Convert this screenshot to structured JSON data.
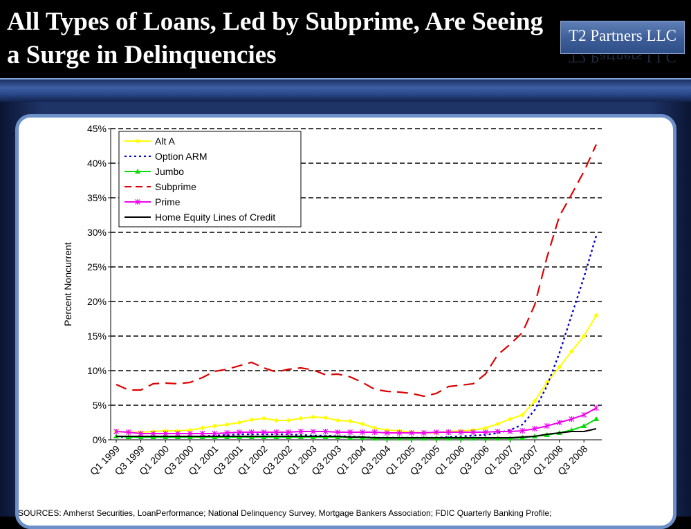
{
  "slide": {
    "title": "All Types of Loans, Led by Subprime, Are Seeing a Surge in Delinquencies",
    "logo_text": "T2 Partners LLC",
    "source": "SOURCES: Amherst Securities, LoanPerformance; National Delinquency Survey, Mortgage Bankers Association; FDIC Quarterly Banking Profile;"
  },
  "chart_data": {
    "type": "line",
    "ylabel": "Percent Noncurrent",
    "ylim": [
      0,
      45
    ],
    "yticks": [
      "0%",
      "5%",
      "10%",
      "15%",
      "20%",
      "25%",
      "30%",
      "35%",
      "40%",
      "45%"
    ],
    "x_tick_labels": [
      "Q1 1999",
      "Q3 1999",
      "Q1 2000",
      "Q3 2000",
      "Q1 2001",
      "Q3 2001",
      "Q1 2002",
      "Q3 2002",
      "Q1 2003",
      "Q3 2003",
      "Q1 2004",
      "Q3 2004",
      "Q1 2005",
      "Q3 2005",
      "Q1 2006",
      "Q3 2006",
      "Q1 2007",
      "Q3 2007",
      "Q1 2008",
      "Q3 2008"
    ],
    "grid": "horizontal dashed",
    "legend_position": "top-left",
    "series": [
      {
        "name": "Alt A",
        "color": "#ffff00",
        "style": "solid",
        "marker": "diamond",
        "values": [
          1.2,
          1.1,
          1.1,
          1.2,
          1.3,
          1.3,
          1.4,
          1.7,
          2.0,
          2.2,
          2.5,
          2.9,
          3.1,
          2.8,
          2.8,
          3.1,
          3.3,
          3.2,
          2.8,
          2.7,
          2.3,
          1.7,
          1.4,
          1.3,
          1.1,
          1.0,
          1.0,
          1.2,
          1.3,
          1.4,
          1.7,
          2.3,
          3.0,
          3.6,
          5.6,
          8.3,
          10.5,
          12.8,
          15.0,
          18.0
        ]
      },
      {
        "name": "Option ARM",
        "color": "#0000cc",
        "style": "dotted",
        "marker": "none",
        "values": [
          0.4,
          0.4,
          0.4,
          0.4,
          0.4,
          0.4,
          0.4,
          0.5,
          0.6,
          0.7,
          0.8,
          0.8,
          0.8,
          0.8,
          0.8,
          0.7,
          0.6,
          0.6,
          0.5,
          0.5,
          0.4,
          0.3,
          0.3,
          0.3,
          0.3,
          0.3,
          0.3,
          0.4,
          0.5,
          0.6,
          0.7,
          1.0,
          1.4,
          2.2,
          4.3,
          7.8,
          12.5,
          18.0,
          23.5,
          29.5
        ]
      },
      {
        "name": "Jumbo",
        "color": "#00dd00",
        "style": "solid",
        "marker": "triangle",
        "values": [
          0.5,
          0.4,
          0.4,
          0.4,
          0.4,
          0.4,
          0.4,
          0.4,
          0.4,
          0.4,
          0.4,
          0.4,
          0.4,
          0.4,
          0.4,
          0.4,
          0.4,
          0.4,
          0.4,
          0.3,
          0.3,
          0.2,
          0.2,
          0.2,
          0.2,
          0.2,
          0.2,
          0.2,
          0.2,
          0.2,
          0.2,
          0.2,
          0.2,
          0.3,
          0.5,
          0.7,
          1.0,
          1.4,
          2.0,
          3.0
        ]
      },
      {
        "name": "Subprime",
        "color": "#dd0000",
        "style": "dashed",
        "marker": "none",
        "values": [
          8.0,
          7.2,
          7.2,
          8.1,
          8.2,
          8.1,
          8.3,
          9.0,
          9.9,
          10.2,
          10.7,
          11.2,
          10.4,
          9.8,
          10.2,
          10.4,
          10.1,
          9.4,
          9.5,
          9.1,
          8.3,
          7.3,
          7.0,
          6.9,
          6.7,
          6.3,
          6.7,
          7.7,
          7.9,
          8.1,
          9.5,
          12.3,
          13.8,
          15.5,
          19.5,
          26.4,
          32.3,
          35.5,
          38.8,
          42.7
        ]
      },
      {
        "name": "Prime",
        "color": "#ee00ee",
        "style": "solid",
        "marker": "star",
        "values": [
          1.2,
          1.1,
          0.9,
          0.9,
          0.9,
          0.9,
          0.9,
          0.9,
          0.9,
          1.0,
          1.1,
          1.1,
          1.1,
          1.1,
          1.1,
          1.2,
          1.2,
          1.2,
          1.1,
          1.1,
          1.1,
          1.1,
          1.0,
          1.0,
          1.0,
          1.0,
          1.1,
          1.1,
          1.1,
          1.1,
          1.1,
          1.2,
          1.2,
          1.3,
          1.6,
          2.0,
          2.5,
          3.0,
          3.6,
          4.6
        ]
      },
      {
        "name": "Home Equity Lines of Credit",
        "color": "#000000",
        "style": "solid",
        "marker": "none",
        "values": [
          0.5,
          0.5,
          0.5,
          0.5,
          0.5,
          0.5,
          0.5,
          0.5,
          0.5,
          0.5,
          0.5,
          0.5,
          0.5,
          0.5,
          0.5,
          0.5,
          0.5,
          0.5,
          0.5,
          0.4,
          0.4,
          0.3,
          0.3,
          0.3,
          0.3,
          0.3,
          0.3,
          0.3,
          0.3,
          0.3,
          0.3,
          0.3,
          0.3,
          0.4,
          0.5,
          0.8,
          1.0,
          1.2,
          1.2,
          1.6
        ]
      }
    ]
  }
}
